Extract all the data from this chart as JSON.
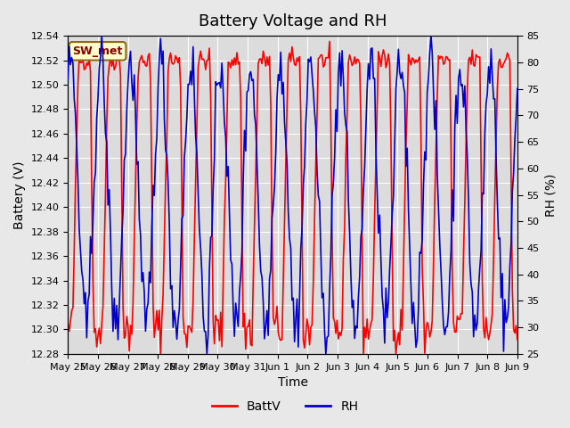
{
  "title": "Battery Voltage and RH",
  "xlabel": "Time",
  "ylabel_left": "Battery (V)",
  "ylabel_right": "RH (%)",
  "label_box": "SW_met",
  "ylim_left": [
    12.28,
    12.54
  ],
  "ylim_right": [
    25,
    85
  ],
  "yticks_left": [
    12.28,
    12.3,
    12.32,
    12.34,
    12.36,
    12.38,
    12.4,
    12.42,
    12.44,
    12.46,
    12.48,
    12.5,
    12.52,
    12.54
  ],
  "yticks_right": [
    25,
    30,
    35,
    40,
    45,
    50,
    55,
    60,
    65,
    70,
    75,
    80,
    85
  ],
  "xtick_labels": [
    "May 25",
    "May 26",
    "May 27",
    "May 28",
    "May 29",
    "May 30",
    "May 31",
    "Jun 1",
    "Jun 2",
    "Jun 3",
    "Jun 4",
    "Jun 5",
    "Jun 6",
    "Jun 7",
    "Jun 8",
    "Jun 9"
  ],
  "batt_color": "#FF0000",
  "rh_color": "#0000CC",
  "background_color": "#E8E8E8",
  "plot_bg_color": "#DCDCDC",
  "grid_color": "#FFFFFF",
  "legend_batt": "BattV",
  "legend_rh": "RH",
  "title_fontsize": 13,
  "axis_label_fontsize": 10,
  "tick_fontsize": 8
}
